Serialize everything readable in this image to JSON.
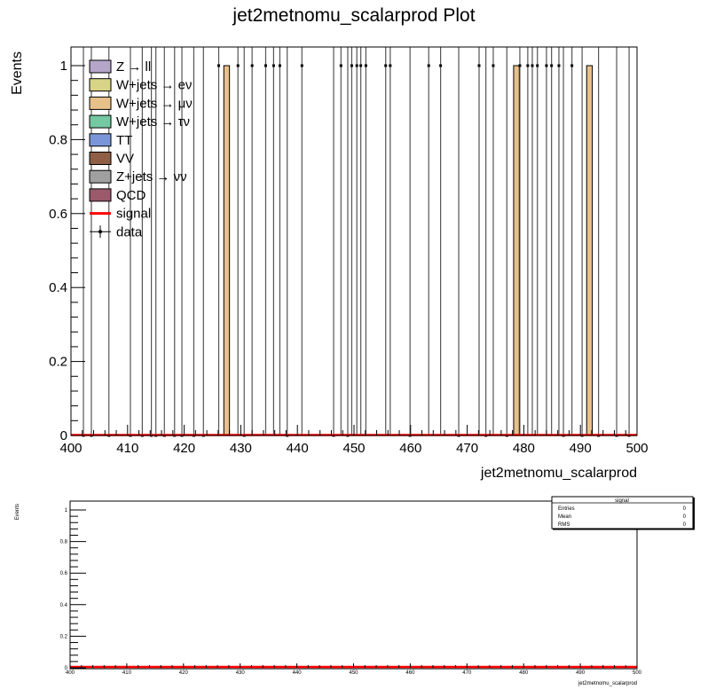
{
  "chart_data": [
    {
      "type": "bar",
      "title": "jet2metnomu_scalarprod Plot",
      "xlabel": "jet2metnomu_scalarprod",
      "ylabel": "Events",
      "xlim": [
        400,
        500
      ],
      "ylim": [
        0,
        1.05
      ],
      "x_ticks": [
        "400",
        "410",
        "420",
        "430",
        "440",
        "450",
        "460",
        "470",
        "480",
        "490",
        "500"
      ],
      "y_ticks": [
        "0",
        "0.2",
        "0.4",
        "0.6",
        "0.8",
        "1"
      ],
      "legend_position": "top-left",
      "legend": [
        {
          "label": "Z → ll",
          "kind": "box",
          "color": "#b5a6c9"
        },
        {
          "label": "W+jets → eν",
          "kind": "box",
          "color": "#d8d487"
        },
        {
          "label": "W+jets → μν",
          "kind": "box",
          "color": "#e8c08a"
        },
        {
          "label": "W+jets → τν",
          "kind": "box",
          "color": "#74c8a2"
        },
        {
          "label": "TT",
          "kind": "box",
          "color": "#7b96d8"
        },
        {
          "label": "VV",
          "kind": "box",
          "color": "#8e5e45"
        },
        {
          "label": "Z+jets → νν",
          "kind": "box",
          "color": "#a0a0a0"
        },
        {
          "label": "QCD",
          "kind": "box",
          "color": "#9a5a6c"
        },
        {
          "label": "signal",
          "kind": "line",
          "color": "#ff0000"
        },
        {
          "label": "data",
          "kind": "marker",
          "color": "#000000"
        }
      ],
      "series": [
        {
          "name": "W+jets → μν",
          "color": "#e8c08a",
          "bins": [
            {
              "x0": 427.0,
              "x1": 428.0,
              "value": 1
            },
            {
              "x0": 478.2,
              "x1": 479.2,
              "value": 1
            },
            {
              "x0": 491.1,
              "x1": 492.1,
              "value": 1
            }
          ]
        },
        {
          "name": "signal",
          "color": "#ff0000",
          "constant": 0
        },
        {
          "name": "data",
          "color": "#000000",
          "points": [
            {
              "x": 402.2,
              "y": 0
            },
            {
              "x": 403.6,
              "y": 0
            },
            {
              "x": 406.7,
              "y": 0
            },
            {
              "x": 410.5,
              "y": 0
            },
            {
              "x": 412.6,
              "y": 0
            },
            {
              "x": 414.2,
              "y": 0
            },
            {
              "x": 415.0,
              "y": 0
            },
            {
              "x": 416.5,
              "y": 0
            },
            {
              "x": 418.3,
              "y": 0
            },
            {
              "x": 419.6,
              "y": 0
            },
            {
              "x": 421.7,
              "y": 0
            },
            {
              "x": 423.4,
              "y": 0
            },
            {
              "x": 426.1,
              "y": 1
            },
            {
              "x": 429.5,
              "y": 1
            },
            {
              "x": 430.6,
              "y": 0
            },
            {
              "x": 432.0,
              "y": 1
            },
            {
              "x": 434.4,
              "y": 1
            },
            {
              "x": 435.8,
              "y": 1
            },
            {
              "x": 436.9,
              "y": 1
            },
            {
              "x": 438.2,
              "y": 0
            },
            {
              "x": 440.8,
              "y": 1
            },
            {
              "x": 446.4,
              "y": 0
            },
            {
              "x": 447.7,
              "y": 1
            },
            {
              "x": 448.9,
              "y": 0
            },
            {
              "x": 449.6,
              "y": 1
            },
            {
              "x": 450.5,
              "y": 1
            },
            {
              "x": 451.2,
              "y": 1
            },
            {
              "x": 452.1,
              "y": 1
            },
            {
              "x": 455.6,
              "y": 1
            },
            {
              "x": 456.4,
              "y": 1
            },
            {
              "x": 459.9,
              "y": 0
            },
            {
              "x": 463.2,
              "y": 1
            },
            {
              "x": 465.3,
              "y": 1
            },
            {
              "x": 468.5,
              "y": 0
            },
            {
              "x": 472.1,
              "y": 1
            },
            {
              "x": 473.3,
              "y": 0
            },
            {
              "x": 474.6,
              "y": 1
            },
            {
              "x": 477.0,
              "y": 0
            },
            {
              "x": 479.3,
              "y": 1
            },
            {
              "x": 480.7,
              "y": 1
            },
            {
              "x": 481.5,
              "y": 1
            },
            {
              "x": 482.4,
              "y": 1
            },
            {
              "x": 484.0,
              "y": 1
            },
            {
              "x": 484.9,
              "y": 1
            },
            {
              "x": 486.2,
              "y": 1
            },
            {
              "x": 487.0,
              "y": 0
            },
            {
              "x": 488.5,
              "y": 1
            },
            {
              "x": 490.3,
              "y": 0
            },
            {
              "x": 493.2,
              "y": 0
            },
            {
              "x": 496.4,
              "y": 0
            },
            {
              "x": 498.6,
              "y": 0
            }
          ]
        }
      ]
    },
    {
      "type": "line",
      "xlabel": "jet2metnomu_scalarprod",
      "ylabel": "Events",
      "xlim": [
        400,
        500
      ],
      "ylim": [
        0,
        1.05
      ],
      "x_ticks": [
        "400",
        "410",
        "420",
        "430",
        "440",
        "450",
        "460",
        "470",
        "480",
        "490",
        "500"
      ],
      "y_ticks": [
        "0",
        "0.2",
        "0.4",
        "0.6",
        "0.8",
        "1"
      ],
      "series": [
        {
          "name": "signal",
          "color": "#ff0000",
          "constant": 0
        }
      ],
      "stats_box": {
        "title": "signal",
        "rows": [
          {
            "label": "Entries",
            "value": "0"
          },
          {
            "label": "Mean",
            "value": "0"
          },
          {
            "label": "RMS",
            "value": "0"
          }
        ]
      }
    }
  ]
}
